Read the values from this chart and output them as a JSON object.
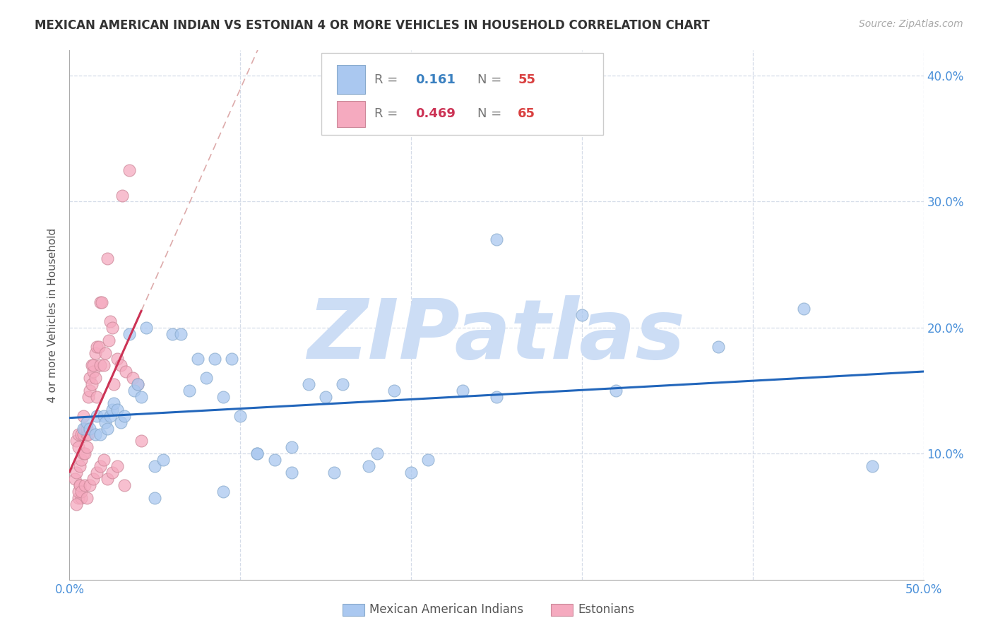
{
  "title": "MEXICAN AMERICAN INDIAN VS ESTONIAN 4 OR MORE VEHICLES IN HOUSEHOLD CORRELATION CHART",
  "source": "Source: ZipAtlas.com",
  "ylabel": "4 or more Vehicles in Household",
  "xlim": [
    0.0,
    0.5
  ],
  "ylim": [
    0.0,
    0.42
  ],
  "xticks": [
    0.0,
    0.1,
    0.2,
    0.3,
    0.4,
    0.5
  ],
  "xticklabels": [
    "0.0%",
    "",
    "",
    "",
    "",
    "50.0%"
  ],
  "yticks": [
    0.0,
    0.1,
    0.2,
    0.3,
    0.4
  ],
  "yticklabels_right": [
    "",
    "10.0%",
    "20.0%",
    "30.0%",
    "40.0%"
  ],
  "watermark": "ZIPatlas",
  "watermark_color": "#ccddf5",
  "blue_scatter_color": "#aac8f0",
  "blue_scatter_edge": "#88aacc",
  "pink_scatter_color": "#f5aabf",
  "pink_scatter_edge": "#cc8899",
  "blue_line_color": "#2266bb",
  "pink_line_color": "#cc3355",
  "pink_dashed_color": "#ddaaaa",
  "grid_color": "#d5dce8",
  "bg_color": "#ffffff",
  "blue_x": [
    0.008,
    0.01,
    0.012,
    0.015,
    0.016,
    0.018,
    0.02,
    0.021,
    0.022,
    0.024,
    0.025,
    0.026,
    0.028,
    0.03,
    0.032,
    0.035,
    0.038,
    0.04,
    0.042,
    0.045,
    0.05,
    0.055,
    0.06,
    0.065,
    0.07,
    0.075,
    0.08,
    0.085,
    0.09,
    0.095,
    0.1,
    0.11,
    0.12,
    0.13,
    0.14,
    0.15,
    0.16,
    0.175,
    0.19,
    0.21,
    0.23,
    0.25,
    0.3,
    0.32,
    0.38,
    0.43,
    0.47,
    0.05,
    0.09,
    0.11,
    0.13,
    0.155,
    0.18,
    0.2,
    0.25
  ],
  "blue_y": [
    0.12,
    0.125,
    0.12,
    0.115,
    0.13,
    0.115,
    0.13,
    0.125,
    0.12,
    0.13,
    0.135,
    0.14,
    0.135,
    0.125,
    0.13,
    0.195,
    0.15,
    0.155,
    0.145,
    0.2,
    0.09,
    0.095,
    0.195,
    0.195,
    0.15,
    0.175,
    0.16,
    0.175,
    0.145,
    0.175,
    0.13,
    0.1,
    0.095,
    0.085,
    0.155,
    0.145,
    0.155,
    0.09,
    0.15,
    0.095,
    0.15,
    0.145,
    0.21,
    0.15,
    0.185,
    0.215,
    0.09,
    0.065,
    0.07,
    0.1,
    0.105,
    0.085,
    0.1,
    0.085,
    0.27
  ],
  "pink_x": [
    0.003,
    0.004,
    0.004,
    0.005,
    0.005,
    0.005,
    0.006,
    0.006,
    0.007,
    0.007,
    0.007,
    0.008,
    0.008,
    0.008,
    0.009,
    0.009,
    0.01,
    0.01,
    0.01,
    0.011,
    0.011,
    0.012,
    0.012,
    0.013,
    0.013,
    0.014,
    0.014,
    0.015,
    0.015,
    0.016,
    0.016,
    0.017,
    0.018,
    0.018,
    0.019,
    0.02,
    0.021,
    0.022,
    0.023,
    0.024,
    0.025,
    0.026,
    0.028,
    0.03,
    0.031,
    0.033,
    0.035,
    0.037,
    0.04,
    0.042,
    0.004,
    0.005,
    0.006,
    0.007,
    0.009,
    0.01,
    0.012,
    0.014,
    0.016,
    0.018,
    0.02,
    0.022,
    0.025,
    0.028,
    0.032
  ],
  "pink_y": [
    0.08,
    0.085,
    0.11,
    0.065,
    0.105,
    0.115,
    0.075,
    0.09,
    0.065,
    0.095,
    0.115,
    0.1,
    0.115,
    0.13,
    0.1,
    0.12,
    0.105,
    0.115,
    0.12,
    0.145,
    0.115,
    0.15,
    0.16,
    0.155,
    0.17,
    0.165,
    0.17,
    0.16,
    0.18,
    0.145,
    0.185,
    0.185,
    0.22,
    0.17,
    0.22,
    0.17,
    0.18,
    0.255,
    0.19,
    0.205,
    0.2,
    0.155,
    0.175,
    0.17,
    0.305,
    0.165,
    0.325,
    0.16,
    0.155,
    0.11,
    0.06,
    0.07,
    0.075,
    0.07,
    0.075,
    0.065,
    0.075,
    0.08,
    0.085,
    0.09,
    0.095,
    0.08,
    0.085,
    0.09,
    0.075
  ]
}
